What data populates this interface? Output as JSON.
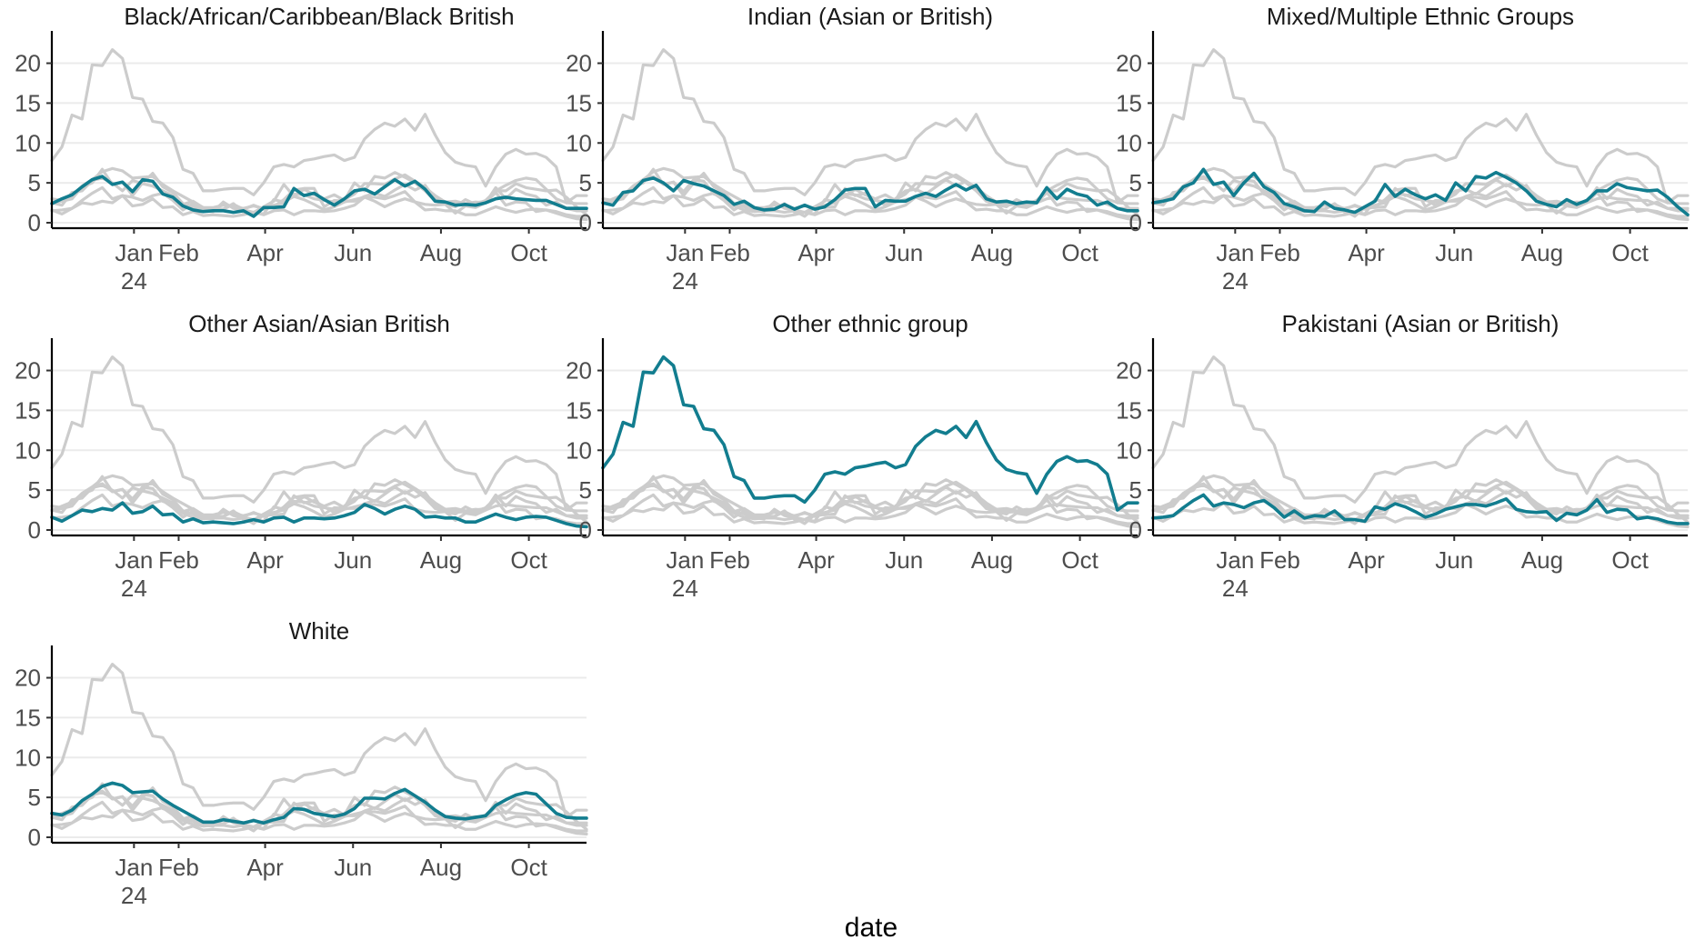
{
  "chart_data": {
    "type": "line",
    "layout": "small-multiples",
    "xlabel": "date",
    "ylabel": "",
    "xlim": [
      "2023-11-05",
      "2024-11-10"
    ],
    "ylim": [
      0,
      22
    ],
    "y_ticks": [
      0,
      5,
      10,
      15,
      20
    ],
    "x_ticks": [
      {
        "date": "2024-01-01",
        "label": "Jan",
        "sublabel": "24"
      },
      {
        "date": "2024-02-01",
        "label": "Feb",
        "sublabel": ""
      },
      {
        "date": "2024-04-01",
        "label": "Apr",
        "sublabel": ""
      },
      {
        "date": "2024-06-01",
        "label": "Jun",
        "sublabel": ""
      },
      {
        "date": "2024-08-01",
        "label": "Aug",
        "sublabel": ""
      },
      {
        "date": "2024-10-01",
        "label": "Oct",
        "sublabel": ""
      }
    ],
    "grid": {
      "horizontal": true,
      "vertical": false
    },
    "background_series_color": "#cccccc",
    "highlight_color": "#127d8f",
    "x": [
      "2023-11-05",
      "2023-11-12",
      "2023-11-19",
      "2023-11-26",
      "2023-12-03",
      "2023-12-10",
      "2023-12-17",
      "2023-12-24",
      "2023-12-31",
      "2024-01-07",
      "2024-01-14",
      "2024-01-21",
      "2024-01-28",
      "2024-02-04",
      "2024-02-11",
      "2024-02-18",
      "2024-02-25",
      "2024-03-03",
      "2024-03-10",
      "2024-03-17",
      "2024-03-24",
      "2024-03-31",
      "2024-04-07",
      "2024-04-14",
      "2024-04-21",
      "2024-04-28",
      "2024-05-05",
      "2024-05-12",
      "2024-05-19",
      "2024-05-26",
      "2024-06-02",
      "2024-06-09",
      "2024-06-16",
      "2024-06-23",
      "2024-06-30",
      "2024-07-07",
      "2024-07-14",
      "2024-07-21",
      "2024-07-28",
      "2024-08-04",
      "2024-08-11",
      "2024-08-18",
      "2024-08-25",
      "2024-09-01",
      "2024-09-08",
      "2024-09-15",
      "2024-09-22",
      "2024-09-29",
      "2024-10-06",
      "2024-10-13",
      "2024-10-20",
      "2024-10-27",
      "2024-11-03",
      "2024-11-10"
    ],
    "series": [
      {
        "name": "Black/African/Caribbean/Black British",
        "values": [
          2.4,
          3.0,
          3.5,
          4.5,
          5.4,
          5.8,
          4.8,
          5.1,
          3.9,
          5.4,
          5.2,
          3.6,
          3.2,
          2.1,
          1.6,
          1.4,
          1.5,
          1.5,
          1.3,
          1.5,
          0.8,
          1.9,
          1.9,
          2.0,
          4.3,
          3.4,
          3.7,
          2.9,
          2.2,
          3.0,
          4.0,
          4.2,
          3.6,
          4.5,
          5.4,
          4.6,
          5.2,
          4.2,
          2.7,
          2.6,
          2.2,
          2.3,
          2.2,
          2.5,
          3.0,
          3.2,
          3.0,
          2.9,
          2.8,
          2.8,
          2.3,
          1.8,
          1.8,
          1.8
        ]
      },
      {
        "name": "Indian (Asian or British)",
        "values": [
          2.5,
          2.2,
          3.8,
          4.0,
          5.3,
          5.6,
          5.0,
          4.0,
          5.3,
          4.9,
          4.6,
          4.0,
          3.4,
          2.3,
          2.7,
          1.9,
          1.6,
          1.7,
          2.3,
          1.7,
          2.2,
          1.7,
          2.0,
          2.9,
          4.1,
          4.3,
          4.3,
          2.0,
          2.8,
          2.7,
          2.7,
          3.3,
          3.7,
          3.3,
          4.1,
          4.8,
          4.1,
          4.7,
          3.0,
          2.6,
          2.7,
          2.4,
          2.6,
          2.5,
          4.4,
          3.0,
          4.2,
          3.6,
          3.3,
          2.2,
          2.6,
          1.8,
          1.5,
          1.5
        ]
      },
      {
        "name": "Mixed/Multiple Ethnic Groups",
        "values": [
          2.5,
          2.7,
          3.0,
          4.5,
          5.0,
          6.7,
          4.8,
          5.1,
          3.4,
          5.0,
          6.2,
          4.5,
          3.8,
          2.4,
          2.0,
          1.5,
          1.4,
          2.6,
          1.8,
          1.6,
          1.3,
          2.0,
          2.7,
          4.8,
          3.3,
          4.2,
          3.5,
          3.0,
          3.5,
          2.8,
          5.0,
          4.0,
          5.8,
          5.6,
          6.3,
          5.7,
          5.0,
          4.0,
          2.7,
          2.3,
          2.0,
          2.9,
          2.3,
          2.8,
          4.0,
          4.0,
          4.9,
          4.4,
          4.2,
          4.0,
          4.1,
          3.2,
          2.0,
          1.0
        ]
      },
      {
        "name": "Other Asian/Asian British",
        "values": [
          1.6,
          1.1,
          1.8,
          2.5,
          2.3,
          2.7,
          2.5,
          3.4,
          2.1,
          2.3,
          3.0,
          1.9,
          2.0,
          1.0,
          1.4,
          0.9,
          1.0,
          0.9,
          0.8,
          1.0,
          1.3,
          1.0,
          1.5,
          1.6,
          1.0,
          1.5,
          1.5,
          1.4,
          1.5,
          1.8,
          2.2,
          3.2,
          2.7,
          2.0,
          2.6,
          3.0,
          2.6,
          1.6,
          1.7,
          1.5,
          1.5,
          1.0,
          1.0,
          1.5,
          2.0,
          1.6,
          1.3,
          1.6,
          1.7,
          1.6,
          1.2,
          0.8,
          0.5,
          0.4
        ]
      },
      {
        "name": "Other ethnic group",
        "values": [
          7.8,
          9.5,
          13.5,
          13.0,
          19.8,
          19.7,
          21.7,
          20.6,
          15.7,
          15.5,
          12.7,
          12.5,
          10.7,
          6.7,
          6.2,
          4.0,
          4.0,
          4.2,
          4.3,
          4.3,
          3.5,
          5.0,
          7.0,
          7.3,
          7.0,
          7.8,
          8.0,
          8.3,
          8.5,
          7.8,
          8.2,
          10.5,
          11.7,
          12.5,
          12.1,
          13.0,
          11.6,
          13.6,
          11.0,
          8.8,
          7.6,
          7.2,
          7.0,
          4.6,
          7.0,
          8.6,
          9.2,
          8.6,
          8.7,
          8.2,
          7.0,
          2.5,
          3.4,
          3.4
        ]
      },
      {
        "name": "Pakistani (Asian or British)",
        "values": [
          1.5,
          1.6,
          1.8,
          2.8,
          3.7,
          4.4,
          3.0,
          3.4,
          3.2,
          2.8,
          3.4,
          3.7,
          2.8,
          1.6,
          2.4,
          1.5,
          1.8,
          1.7,
          2.4,
          1.3,
          1.3,
          1.1,
          2.9,
          2.6,
          3.3,
          2.9,
          2.3,
          1.6,
          2.0,
          2.6,
          2.9,
          3.2,
          3.2,
          3.0,
          3.4,
          3.9,
          2.6,
          2.3,
          2.2,
          2.3,
          1.2,
          2.1,
          1.9,
          2.5,
          3.8,
          2.2,
          2.6,
          2.5,
          1.4,
          1.6,
          1.4,
          1.0,
          0.8,
          0.8
        ]
      },
      {
        "name": "White",
        "values": [
          3.0,
          2.8,
          3.4,
          4.6,
          5.4,
          6.4,
          6.8,
          6.5,
          5.6,
          5.7,
          5.8,
          4.8,
          4.0,
          3.3,
          2.6,
          1.9,
          1.9,
          2.2,
          2.0,
          1.8,
          2.1,
          1.8,
          2.2,
          2.5,
          3.6,
          3.5,
          3.0,
          2.8,
          2.6,
          2.9,
          3.6,
          4.9,
          4.9,
          4.8,
          5.5,
          6.0,
          5.2,
          4.4,
          3.4,
          2.6,
          2.4,
          2.3,
          2.5,
          2.7,
          4.0,
          4.7,
          5.3,
          5.6,
          5.4,
          4.2,
          3.0,
          2.5,
          2.4,
          2.4
        ]
      }
    ]
  }
}
